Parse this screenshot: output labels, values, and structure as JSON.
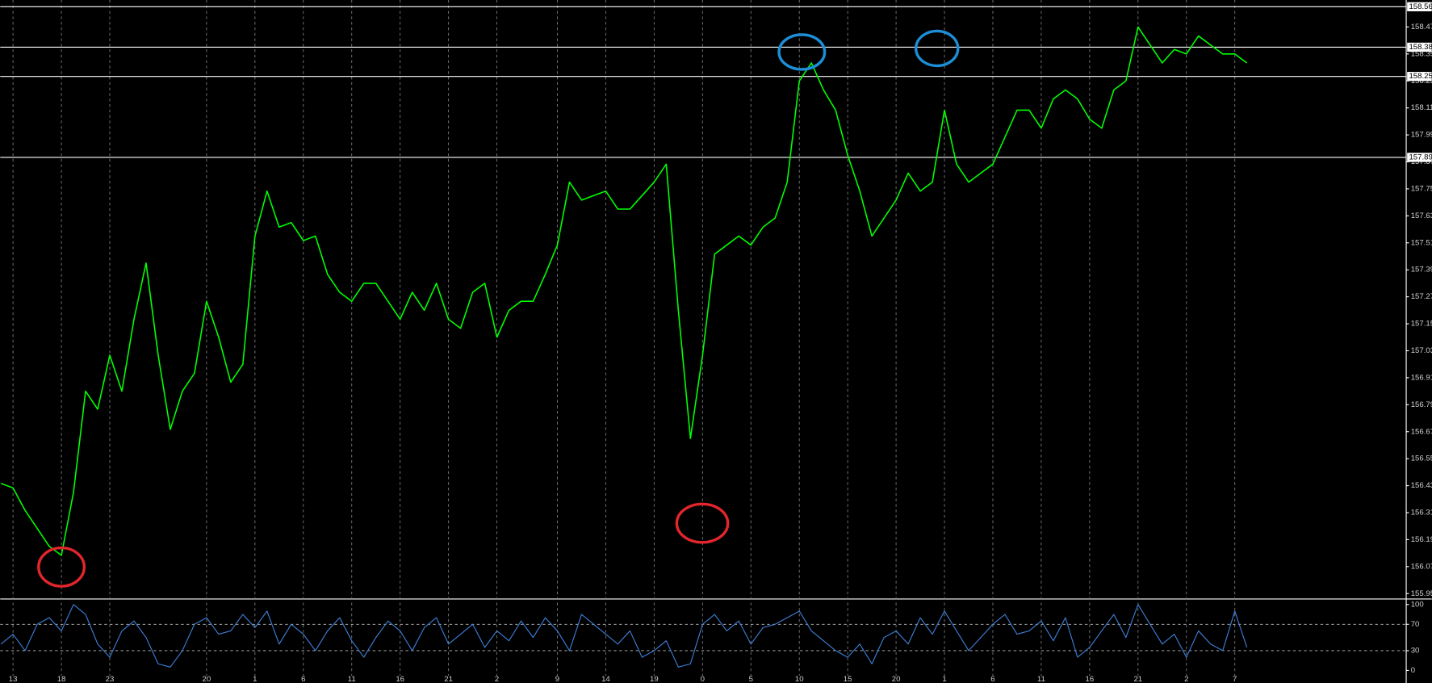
{
  "chart_data": [
    {
      "type": "line",
      "grid": true,
      "categories": [
        null,
        "13",
        null,
        null,
        null,
        "18",
        null,
        null,
        null,
        "23",
        null,
        null,
        null,
        null,
        null,
        null,
        null,
        "20",
        null,
        null,
        null,
        "1",
        null,
        null,
        null,
        "6",
        null,
        null,
        null,
        "11",
        null,
        null,
        null,
        "16",
        null,
        null,
        null,
        "21",
        null,
        null,
        null,
        "2",
        null,
        null,
        null,
        null,
        "9",
        null,
        null,
        null,
        "14",
        null,
        null,
        null,
        "19",
        null,
        null,
        null,
        "0",
        null,
        null,
        null,
        "5",
        null,
        null,
        null,
        "10",
        null,
        null,
        null,
        "15",
        null,
        null,
        null,
        "20",
        null,
        null,
        null,
        "1",
        null,
        null,
        null,
        "6",
        null,
        null,
        null,
        "11",
        null,
        null,
        null,
        "16",
        null,
        null,
        null,
        "21",
        null,
        null,
        null,
        "2",
        null,
        null,
        null,
        "7",
        null
      ],
      "series": [
        {
          "color": "#00ff00",
          "values": [
            156.44,
            156.42,
            156.32,
            156.24,
            156.16,
            156.12,
            156.4,
            156.85,
            156.77,
            157.01,
            156.85,
            157.17,
            157.42,
            157.01,
            156.68,
            156.85,
            156.93,
            157.25,
            157.09,
            156.89,
            156.97,
            157.54,
            157.74,
            157.58,
            157.6,
            157.52,
            157.54,
            157.37,
            157.29,
            157.25,
            157.33,
            157.33,
            157.25,
            157.17,
            157.29,
            157.21,
            157.33,
            157.17,
            157.13,
            157.29,
            157.33,
            157.09,
            157.21,
            157.25,
            157.25,
            157.37,
            157.5,
            157.78,
            157.7,
            157.72,
            157.74,
            157.66,
            157.66,
            157.72,
            157.78,
            157.86,
            157.21,
            156.64,
            157.01,
            157.46,
            157.5,
            157.54,
            157.5,
            157.58,
            157.62,
            157.78,
            158.23,
            158.31,
            158.19,
            158.1,
            157.9,
            157.74,
            157.54,
            157.62,
            157.7,
            157.82,
            157.74,
            157.78,
            158.1,
            157.86,
            157.78,
            157.82,
            157.86,
            157.98,
            158.1,
            158.1,
            158.02,
            158.15,
            158.19,
            158.15,
            158.06,
            158.02,
            158.19,
            158.23,
            158.47,
            158.39,
            158.31,
            158.37,
            158.35,
            158.43,
            158.39,
            158.35,
            158.35,
            158.31
          ]
        }
      ],
      "ylim": [
        155.93,
        158.59
      ],
      "yticks": [
        155.95,
        156.07,
        156.19,
        156.31,
        156.43,
        156.55,
        156.67,
        156.79,
        156.91,
        157.03,
        157.15,
        157.27,
        157.39,
        157.51,
        157.63,
        157.75,
        157.87,
        157.99,
        158.11,
        158.23,
        158.35,
        158.47
      ],
      "price_lines": [
        158.56,
        158.38,
        158.25,
        157.89
      ]
    },
    {
      "type": "line",
      "series": [
        {
          "color": "#3d7fd6",
          "values": [
            40,
            55,
            30,
            70,
            80,
            60,
            100,
            85,
            40,
            20,
            60,
            75,
            50,
            10,
            5,
            30,
            70,
            80,
            55,
            60,
            85,
            65,
            90,
            40,
            70,
            55,
            30,
            60,
            80,
            45,
            20,
            50,
            75,
            60,
            30,
            65,
            80,
            40,
            55,
            70,
            35,
            60,
            45,
            75,
            50,
            80,
            60,
            30,
            85,
            70,
            55,
            40,
            60,
            20,
            30,
            45,
            5,
            10,
            70,
            85,
            60,
            75,
            40,
            65,
            70,
            80,
            90,
            60,
            45,
            30,
            20,
            40,
            10,
            50,
            60,
            40,
            80,
            55,
            90,
            60,
            30,
            50,
            70,
            85,
            55,
            60,
            75,
            45,
            80,
            20,
            35,
            60,
            85,
            50,
            100,
            70,
            40,
            55,
            20,
            60,
            40,
            30,
            90,
            35
          ]
        }
      ],
      "ylim": [
        -8,
        107
      ],
      "yticks": [
        0,
        30,
        70,
        100
      ],
      "levels": [
        30,
        70
      ]
    }
  ]
}
